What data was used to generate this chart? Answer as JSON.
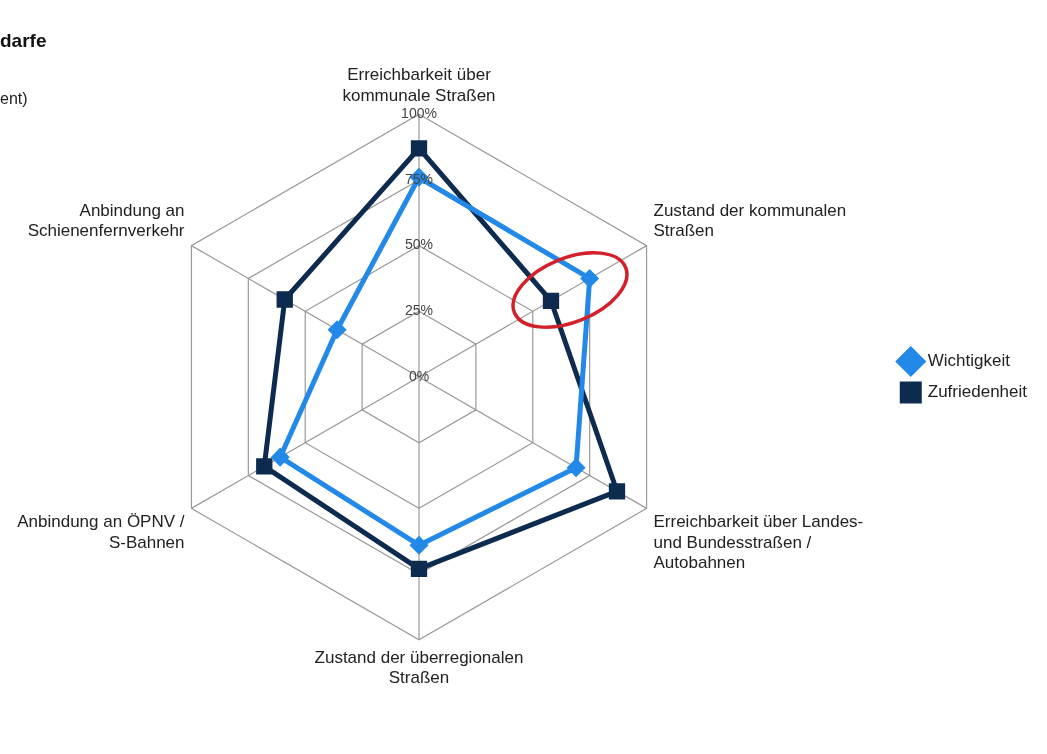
{
  "chart_data": {
    "type": "radar",
    "title": "darfe",
    "subtitle": "ent)",
    "categories": [
      "Erreichbarkeit über kommunale Straßen",
      "Zustand der kommunalen Straßen",
      "Erreichbarkeit über Landes- und Bundesstraßen / Autobahnen",
      "Zustand der überregionalen Straßen",
      "Anbindung an ÖPNV / S-Bahnen",
      "Anbindung an Schienenfernverkehr"
    ],
    "series": [
      {
        "name": "Wichtigkeit",
        "color": "#2389e8",
        "marker": "diamond",
        "values": [
          76,
          75,
          69,
          64,
          61,
          36
        ]
      },
      {
        "name": "Zufriedenheit",
        "color": "#0d2a4f",
        "marker": "square",
        "values": [
          87,
          58,
          87,
          73,
          68,
          59
        ]
      }
    ],
    "ylim": [
      0,
      100
    ],
    "yticks": [
      {
        "value": 0,
        "label": "0%"
      },
      {
        "value": 25,
        "label": "25%"
      },
      {
        "value": 50,
        "label": "50%"
      },
      {
        "value": 75,
        "label": "75%"
      },
      {
        "value": 100,
        "label": "100%"
      }
    ],
    "grid": true,
    "legend": "right"
  }
}
